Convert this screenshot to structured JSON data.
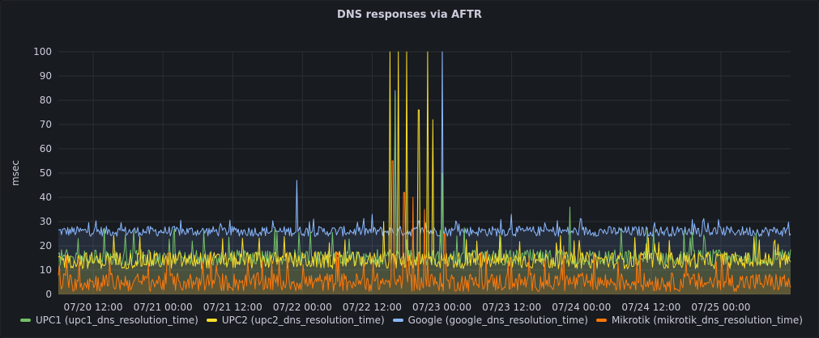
{
  "panel": {
    "title": "DNS responses via AFTR"
  },
  "colors": {
    "background": "#181b1f",
    "grid": "#2c2f36",
    "text": "#ccccdc",
    "upc1": "#73bf69",
    "upc2": "#fade2a",
    "google": "#8ab8ff",
    "mikrotik": "#ff780a"
  },
  "chart_data": {
    "type": "line",
    "title": "DNS responses via AFTR",
    "ylabel": "msec",
    "xlabel": "",
    "ylim": [
      0,
      100
    ],
    "yticks": [
      0,
      10,
      20,
      30,
      40,
      50,
      60,
      70,
      80,
      90,
      100
    ],
    "xlim": [
      "07/20 06:00",
      "07/25 12:00"
    ],
    "xticks": [
      "07/20 12:00",
      "07/21 00:00",
      "07/21 12:00",
      "07/22 00:00",
      "07/22 12:00",
      "07/23 00:00",
      "07/23 12:00",
      "07/24 00:00",
      "07/24 12:00",
      "07/25 00:00"
    ],
    "grid": true,
    "legend_position": "bottom-left",
    "series": [
      {
        "name": "UPC1 (upc1_dns_resolution_time)",
        "color": "#73bf69",
        "typical_value": 15,
        "range": [
          12,
          22
        ],
        "spikes": [
          [
            "07/22 16:00",
            82
          ],
          [
            "07/23 00:00",
            50
          ],
          [
            "07/23 22:00",
            36
          ],
          [
            "07/21 05:00",
            22
          ]
        ]
      },
      {
        "name": "UPC2 (upc2_dns_resolution_time)",
        "color": "#fade2a",
        "typical_value": 14,
        "range": [
          10,
          20
        ],
        "spikes": [
          [
            "07/22 15:00",
            100
          ],
          [
            "07/22 16:30",
            100
          ],
          [
            "07/22 18:00",
            100
          ],
          [
            "07/22 20:00",
            76
          ],
          [
            "07/22 21:30",
            100
          ],
          [
            "07/22 22:30",
            72
          ],
          [
            "07/22 14:00",
            30
          ]
        ]
      },
      {
        "name": "Google (google_dns_resolution_time)",
        "color": "#8ab8ff",
        "typical_value": 26,
        "range": [
          23,
          29
        ],
        "spikes": [
          [
            "07/21 23:00",
            47
          ],
          [
            "07/22 16:00",
            84
          ],
          [
            "07/23 00:00",
            100
          ],
          [
            "07/22 12:00",
            33
          ],
          [
            "07/23 12:00",
            33
          ]
        ]
      },
      {
        "name": "Mikrotik (mikrotik_dns_resolution_time)",
        "color": "#ff780a",
        "typical_value": 5,
        "range": [
          1,
          12
        ],
        "spikes": [
          [
            "07/22 15:30",
            55
          ],
          [
            "07/22 17:30",
            42
          ],
          [
            "07/22 19:00",
            40
          ],
          [
            "07/22 21:00",
            35
          ],
          [
            "07/23 00:30",
            25
          ],
          [
            "07/23 21:00",
            20
          ],
          [
            "07/21 01:00",
            17
          ]
        ]
      }
    ]
  }
}
